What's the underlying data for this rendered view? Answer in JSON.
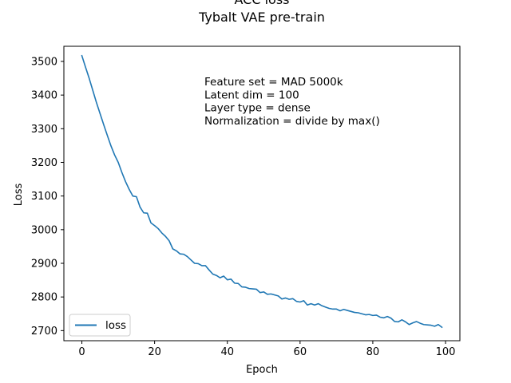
{
  "chart_data": {
    "type": "line",
    "title": "ACC loss",
    "subtitle": "Tybalt VAE pre-train",
    "xlabel": "Epoch",
    "ylabel": "Loss",
    "xlim": [
      -4.95,
      103.95
    ],
    "ylim": [
      2670,
      3545
    ],
    "xticks": [
      0,
      20,
      40,
      60,
      80,
      100
    ],
    "yticks": [
      2700,
      2800,
      2900,
      3000,
      3100,
      3200,
      3300,
      3400,
      3500
    ],
    "grid": false,
    "legend_placement": "lower-left",
    "annotation": [
      "Feature set = MAD 5000k",
      "Latent dim = 100",
      "Layer type = dense",
      "Normalization = divide by max()"
    ],
    "series": [
      {
        "name": "loss",
        "color": "#1f77b4",
        "x": [
          0,
          1,
          2,
          3,
          4,
          5,
          6,
          7,
          8,
          9,
          10,
          11,
          12,
          13,
          14,
          15,
          16,
          17,
          18,
          19,
          20,
          21,
          22,
          23,
          24,
          25,
          26,
          27,
          28,
          29,
          30,
          31,
          32,
          33,
          34,
          35,
          36,
          37,
          38,
          39,
          40,
          41,
          42,
          43,
          44,
          45,
          46,
          47,
          48,
          49,
          50,
          51,
          52,
          53,
          54,
          55,
          56,
          57,
          58,
          59,
          60,
          61,
          62,
          63,
          64,
          65,
          66,
          67,
          68,
          69,
          70,
          71,
          72,
          73,
          74,
          75,
          76,
          77,
          78,
          79,
          80,
          81,
          82,
          83,
          84,
          85,
          86,
          87,
          88,
          89,
          90,
          91,
          92,
          93,
          94,
          95,
          96,
          97,
          98,
          99
        ],
        "values": [
          3517,
          3483,
          3450,
          3414,
          3378,
          3345,
          3312,
          3280,
          3249,
          3222,
          3200,
          3170,
          3143,
          3120,
          3100,
          3098,
          3067,
          3050,
          3049,
          3020,
          3012,
          3003,
          2990,
          2980,
          2967,
          2943,
          2937,
          2928,
          2927,
          2920,
          2910,
          2900,
          2899,
          2893,
          2893,
          2880,
          2868,
          2864,
          2857,
          2862,
          2851,
          2853,
          2841,
          2840,
          2830,
          2829,
          2825,
          2824,
          2823,
          2813,
          2815,
          2808,
          2809,
          2806,
          2803,
          2794,
          2797,
          2793,
          2795,
          2787,
          2785,
          2789,
          2776,
          2780,
          2776,
          2780,
          2774,
          2770,
          2766,
          2764,
          2764,
          2759,
          2763,
          2760,
          2757,
          2754,
          2753,
          2750,
          2747,
          2748,
          2745,
          2746,
          2740,
          2738,
          2742,
          2737,
          2727,
          2726,
          2732,
          2726,
          2718,
          2723,
          2727,
          2722,
          2718,
          2717,
          2716,
          2713,
          2718,
          2710
        ]
      }
    ]
  }
}
